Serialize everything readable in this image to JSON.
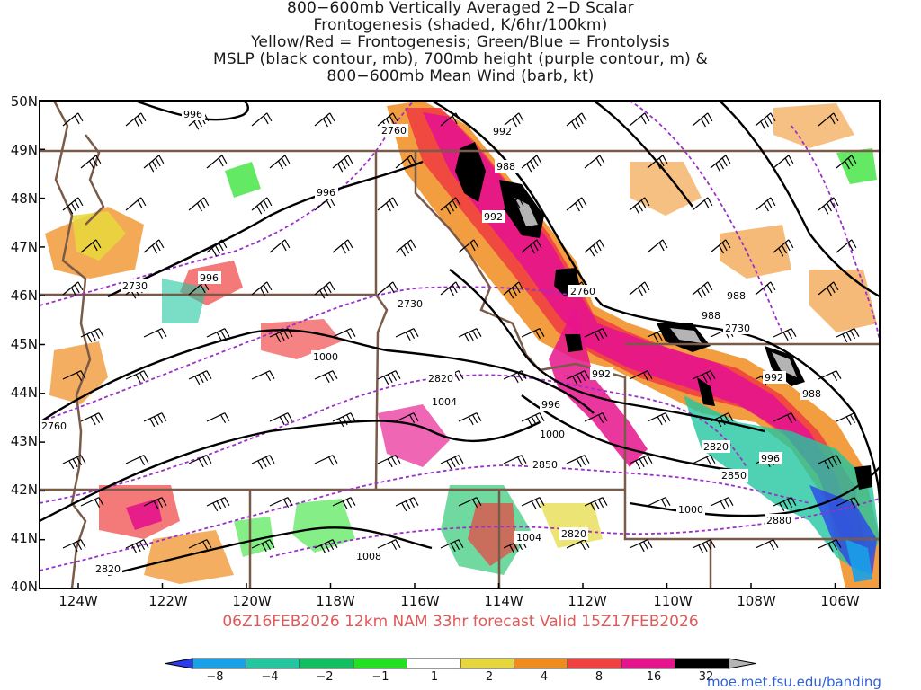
{
  "title_lines": [
    "800−600mb Vertically Averaged 2−D Scalar",
    "Frontogenesis (shaded, K/6hr/100km)",
    "Yellow/Red = Frontogenesis;  Green/Blue = Frontolysis",
    "MSLP (black contour, mb), 700mb height (purple contour, m) &",
    "800−600mb Mean Wind (barb, kt)"
  ],
  "lat_labels": [
    "50N",
    "49N",
    "48N",
    "47N",
    "46N",
    "45N",
    "44N",
    "43N",
    "42N",
    "41N",
    "40N"
  ],
  "lon_labels": [
    "124W",
    "122W",
    "120W",
    "118W",
    "116W",
    "114W",
    "112W",
    "110W",
    "108W",
    "106W"
  ],
  "footer": "06Z16FEB2026  12km NAM 33hr forecast Valid  15Z17FEB2026",
  "credit": "moe.met.fsu.edu/banding",
  "colorbar": {
    "labels": [
      "−8",
      "−4",
      "−2",
      "−1",
      "1",
      "2",
      "4",
      "8",
      "16",
      "32"
    ],
    "colors": [
      "#2b3cf0",
      "#1aa0e6",
      "#22c7a0",
      "#10c060",
      "#22e022",
      "#ffffff",
      "#e6d83c",
      "#f08c1e",
      "#f04040",
      "#e6148c",
      "#000000",
      "#b4b4b4"
    ]
  },
  "contour_labels": {
    "mslp": [
      "996",
      "996",
      "992",
      "988",
      "992",
      "996",
      "1000",
      "1004",
      "1008",
      "1000",
      "1004",
      "1000",
      "988",
      "988",
      "992",
      "988",
      "996",
      "996",
      "992"
    ],
    "height": [
      "2760",
      "2730",
      "2730",
      "2760",
      "2730",
      "2820",
      "2850",
      "2850",
      "2880",
      "2820",
      "2760",
      "2820",
      "2820"
    ]
  }
}
